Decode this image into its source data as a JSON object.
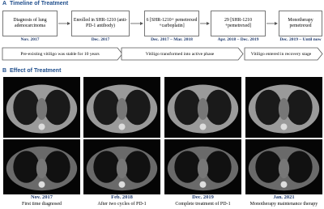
{
  "panel_a": {
    "label": "A",
    "title": "Timeline of Treatment",
    "steps": [
      {
        "text": "Diagnosis of lung adenocarcinoma",
        "date": "Nov. 2017"
      },
      {
        "text": "Enrolled in SHR-1210 (anti-PD-1 antibody)",
        "date": "Dec. 2017"
      },
      {
        "text": "6 [SHR-1210+ pemetrexed +carboplatin]",
        "date": "Dec. 2017 – Mar. 2018"
      },
      {
        "text": "29 [SHR-1210 +pemetrexed]",
        "date": "Apr. 2018 – Dec. 2019"
      },
      {
        "text": "Monotherapy pemetrexed",
        "date": "Dec. 2019 – Until now"
      }
    ],
    "phases": [
      "Pre-existing vitiligo was stable for 10 years",
      "Vitiligo transformed into active phase",
      "Vitiligo entered in recovery stage"
    ]
  },
  "panel_b": {
    "label": "B",
    "title": "Effect of Treatment",
    "columns": [
      {
        "date": "Nov. 2017",
        "caption": "First time diagnosed"
      },
      {
        "date": "Feb. 2018",
        "caption": "After two cycles of PD-1"
      },
      {
        "date": "Dec. 2019",
        "caption": "Complete treatment of PD-1"
      },
      {
        "date": "Jan. 2021",
        "caption": "Monotherapy maintenance therapy"
      }
    ]
  }
}
